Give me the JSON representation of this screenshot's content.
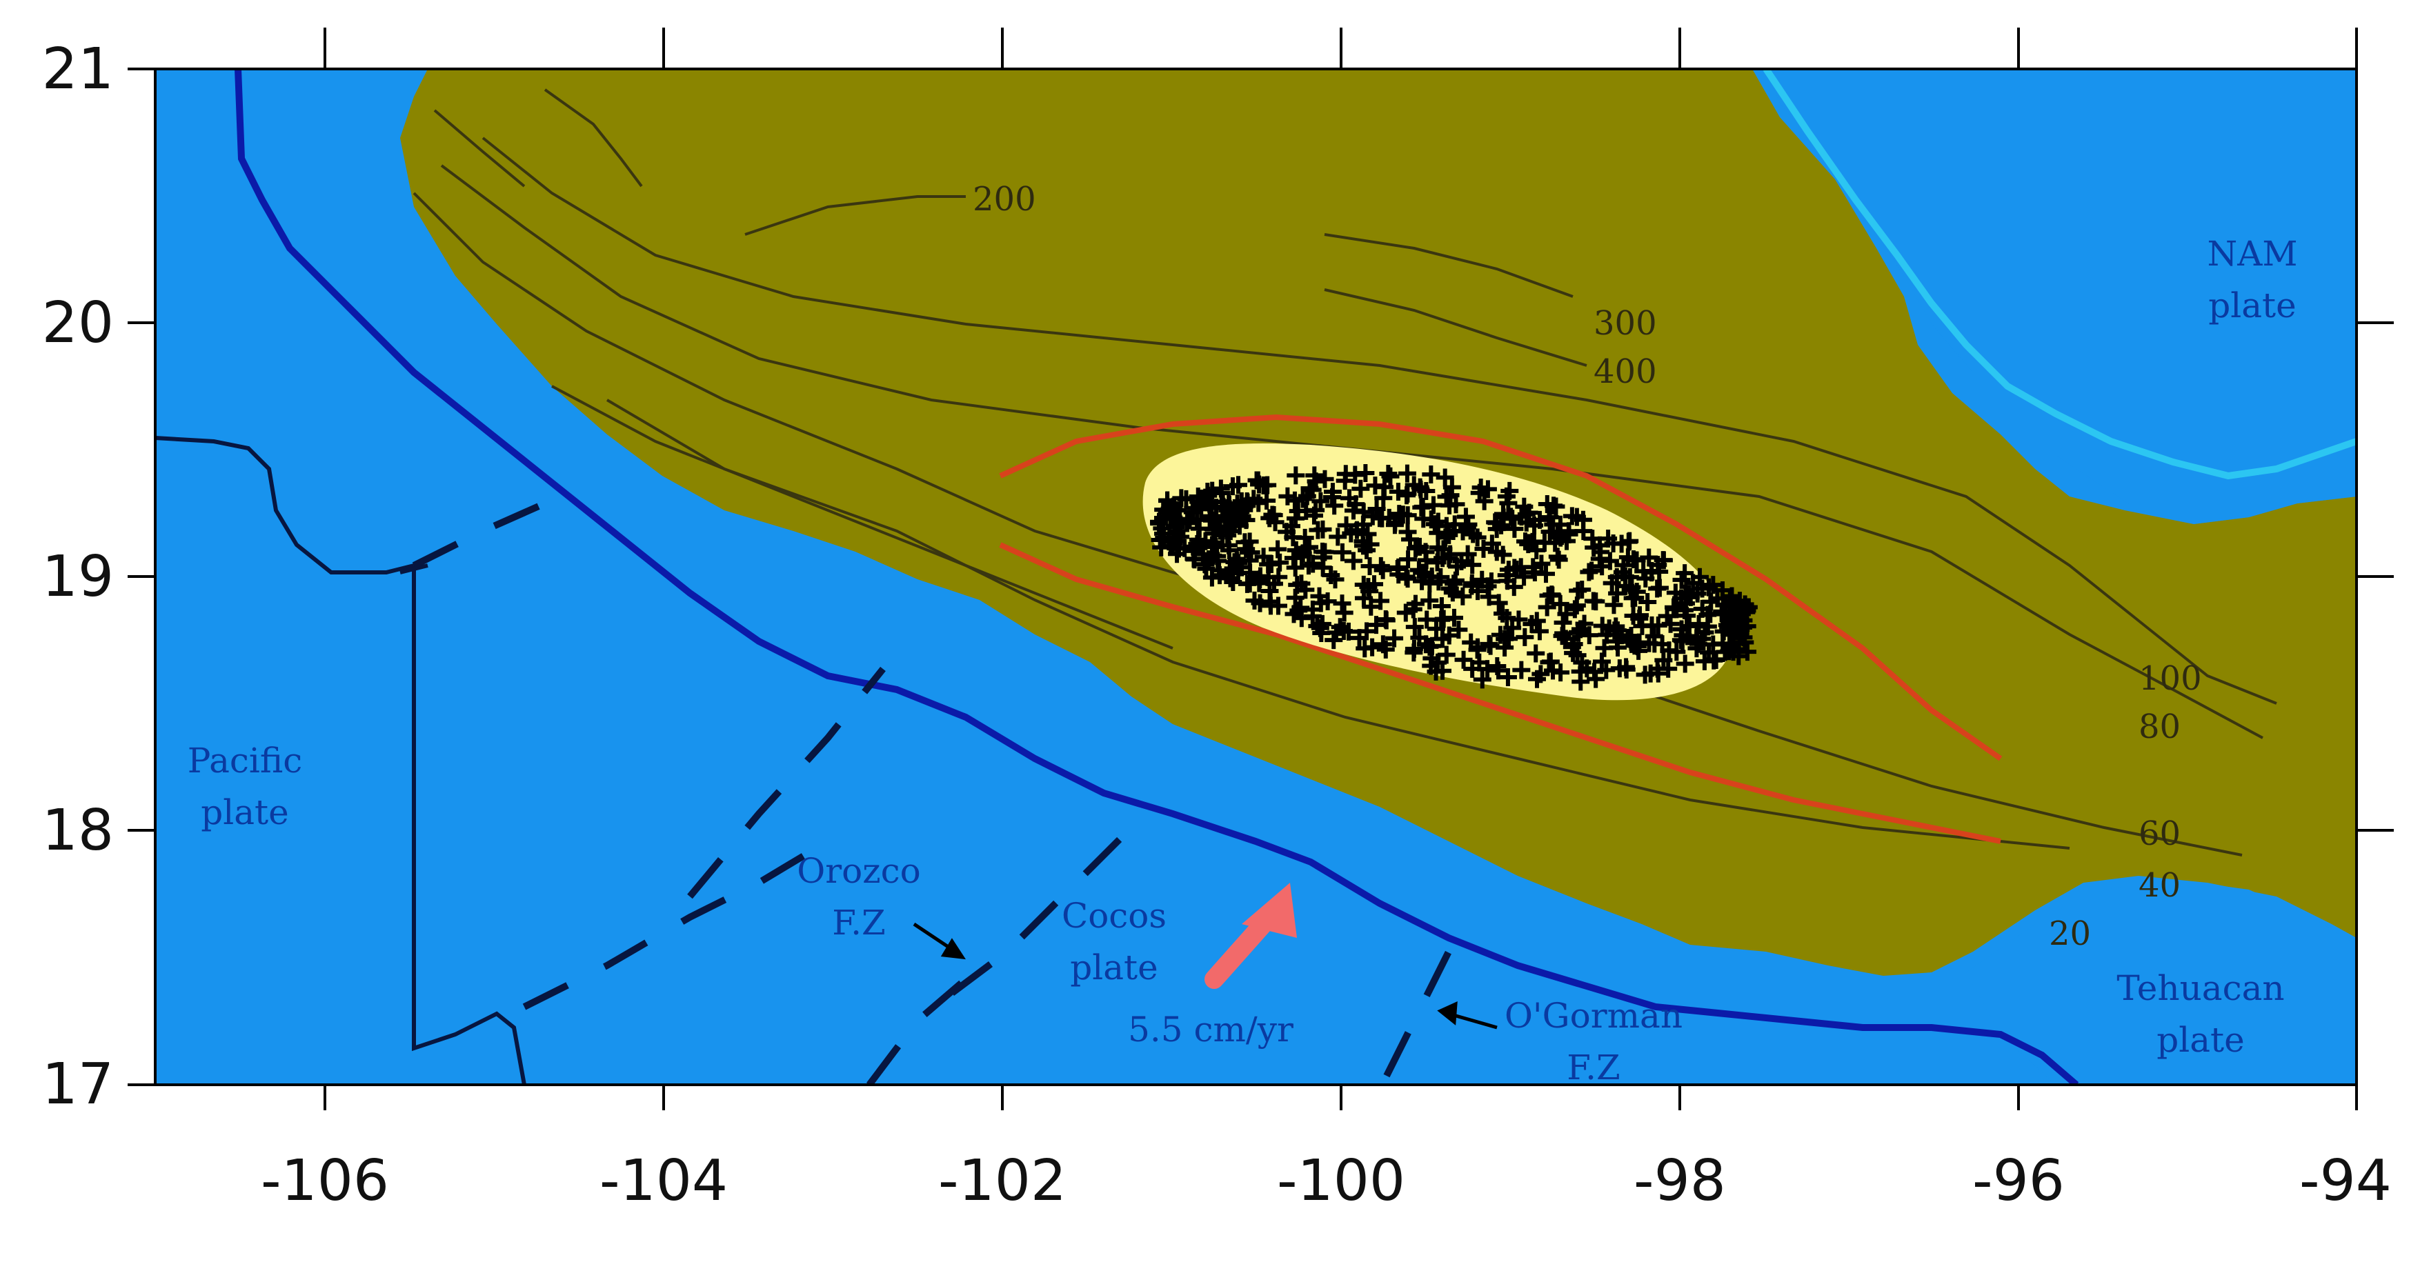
{
  "map": {
    "x_ticks": [
      "-106",
      "-104",
      "-102",
      "-100",
      "-98",
      "-96",
      "-94"
    ],
    "y_ticks": [
      "21",
      "20",
      "19",
      "18",
      "17"
    ],
    "plate_labels": {
      "nam_line1": "NAM",
      "nam_line2": "plate",
      "pacific_line1": "Pacific",
      "pacific_line2": "plate",
      "cocos_line1": "Cocos",
      "cocos_line2": "plate",
      "tehuacan_line1": "Tehuacan",
      "tehuacan_line2": "plate"
    },
    "fracture_zones": {
      "orozco_line1": "Orozco",
      "orozco_line2": "F.Z",
      "ogorman_line1": "O'Gorman",
      "ogorman_line2": "F.Z"
    },
    "convergence_rate": "5.5 cm/yr",
    "contour_labels": {
      "c200": "200",
      "c300": "300",
      "c400": "400",
      "c100": "100",
      "c80": "80",
      "c60": "60",
      "c40": "40",
      "c20": "20"
    },
    "colors": {
      "ocean": "#1893ee",
      "land": "#8a8500",
      "trench": "#0b1aa8",
      "highlight": "#fcf59a",
      "red_contour": "#d8421c",
      "arrow": "#f26a6a",
      "river": "#2cc6f2"
    }
  }
}
